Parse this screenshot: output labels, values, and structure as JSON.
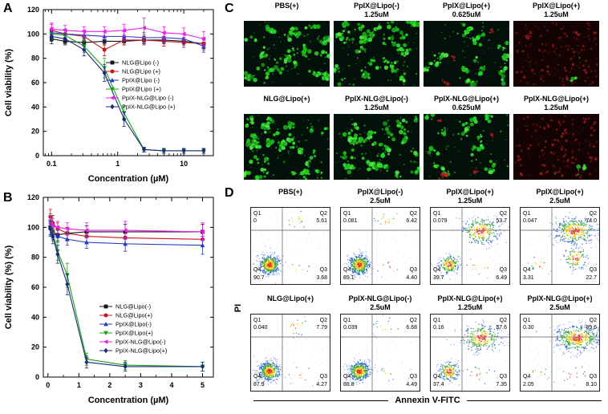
{
  "figure": {
    "panel_a_label": "A",
    "panel_b_label": "B",
    "panel_c_label": "C",
    "panel_d_label": "D"
  },
  "chart_data": [
    {
      "id": "A",
      "type": "line",
      "title": "",
      "xlabel": "Concentration (µM)",
      "ylabel": "Cell viability (%)",
      "xscale": "log",
      "xlim": [
        0.075,
        28
      ],
      "ylim": [
        0,
        120
      ],
      "xticks": [
        0.1,
        1,
        10
      ],
      "yticks": [
        0,
        20,
        40,
        60,
        80,
        100,
        120
      ],
      "grid": false,
      "legend_position": "center-right",
      "x": [
        0.1,
        0.16,
        0.31,
        0.63,
        1.25,
        2.5,
        5,
        10,
        20
      ],
      "series": [
        {
          "name": "NLG@Lipo (-)",
          "color": "#141414",
          "marker": "square",
          "values": [
            96,
            94,
            93,
            94,
            94,
            95,
            95,
            94,
            92
          ],
          "err": [
            4,
            3,
            3,
            3,
            3,
            3,
            3,
            3,
            4
          ]
        },
        {
          "name": "NLG@Lipo (+)",
          "color": "#c4161c",
          "marker": "circle",
          "values": [
            103,
            100,
            98,
            87,
            95,
            95,
            94,
            93,
            92
          ],
          "err": [
            5,
            4,
            4,
            5,
            4,
            4,
            4,
            4,
            5
          ]
        },
        {
          "name": "PpIX@Lipo (-)",
          "color": "#1f3bbf",
          "marker": "triangle-up",
          "values": [
            101,
            100,
            99,
            98,
            98,
            97,
            97,
            96,
            90
          ],
          "err": [
            4,
            4,
            4,
            4,
            4,
            4,
            4,
            4,
            5
          ]
        },
        {
          "name": "PpIX@Lipo (+)",
          "color": "#1d9e1d",
          "marker": "triangle-down",
          "values": [
            100,
            99,
            90,
            72,
            35,
            5,
            4,
            4,
            4
          ],
          "err": [
            4,
            4,
            5,
            8,
            6,
            2,
            2,
            2,
            2
          ]
        },
        {
          "name": "PpIX-NLG@Lipo (-)",
          "color": "#e91ee9",
          "marker": "triangle-left",
          "values": [
            104,
            103,
            102,
            102,
            103,
            105,
            101,
            100,
            96
          ],
          "err": [
            5,
            4,
            4,
            4,
            5,
            8,
            5,
            5,
            6
          ]
        },
        {
          "name": "PpIX-NLG@Lipo (+)",
          "color": "#1b2a78",
          "marker": "diamond",
          "values": [
            98,
            96,
            87,
            68,
            30,
            5,
            4,
            4,
            4
          ],
          "err": [
            4,
            4,
            5,
            7,
            6,
            2,
            2,
            2,
            2
          ]
        }
      ]
    },
    {
      "id": "B",
      "type": "line",
      "title": "",
      "xlabel": "Concentration (µM)",
      "ylabel": "Cell viability (%) (%)",
      "xscale": "linear",
      "xlim": [
        -0.15,
        5.35
      ],
      "ylim": [
        0,
        120
      ],
      "xticks": [
        0,
        1,
        2,
        3,
        4,
        5
      ],
      "yticks": [
        0,
        20,
        40,
        60,
        80,
        100,
        120
      ],
      "grid": false,
      "legend_position": "center-right",
      "x": [
        0.078,
        0.156,
        0.313,
        0.625,
        1.25,
        2.5,
        5
      ],
      "series": [
        {
          "name": "NLG@Lipo(-)",
          "color": "#141414",
          "marker": "square",
          "values": [
            100,
            97,
            95,
            96,
            97,
            97,
            97
          ],
          "err": [
            5,
            4,
            4,
            4,
            4,
            5,
            5
          ]
        },
        {
          "name": "NLG@Lipo(+)",
          "color": "#c4161c",
          "marker": "circle",
          "values": [
            107,
            103,
            99,
            96,
            94,
            93,
            92
          ],
          "err": [
            5,
            5,
            4,
            4,
            4,
            5,
            5
          ]
        },
        {
          "name": "PpIX@Lipo(-)",
          "color": "#1f3bbf",
          "marker": "triangle-up",
          "values": [
            100,
            96,
            94,
            92,
            90,
            89,
            88
          ],
          "err": [
            5,
            4,
            4,
            4,
            4,
            5,
            6
          ]
        },
        {
          "name": "PpIX@Lipo(+)",
          "color": "#1d9e1d",
          "marker": "triangle-down",
          "values": [
            104,
            96,
            84,
            68,
            12,
            8,
            7
          ],
          "err": [
            5,
            5,
            6,
            8,
            4,
            3,
            3
          ]
        },
        {
          "name": "PpIX-NLG@Lipo(-)",
          "color": "#e91ee9",
          "marker": "triangle-left",
          "values": [
            103,
            101,
            100,
            99,
            98,
            98,
            97
          ],
          "err": [
            5,
            5,
            4,
            4,
            5,
            6,
            6
          ]
        },
        {
          "name": "PpIX-NLG@Lipo(+)",
          "color": "#1b2a78",
          "marker": "diamond",
          "values": [
            99,
            94,
            82,
            62,
            10,
            7,
            7
          ],
          "err": [
            5,
            5,
            6,
            7,
            4,
            3,
            3
          ]
        }
      ]
    }
  ],
  "panel_c": {
    "rows": [
      {
        "cells": [
          {
            "line1": "PBS(+)",
            "line2": "",
            "green": 1.0,
            "red": 0.02
          },
          {
            "line1": "PpIX@Lipo(-)",
            "line2": "1.25uM",
            "green": 0.95,
            "red": 0.02
          },
          {
            "line1": "PpIX@Lipo(+)",
            "line2": "0.625uM",
            "green": 0.55,
            "red": 0.12
          },
          {
            "line1": "PpIX@Lipo(+)",
            "line2": "1.25uM",
            "green": 0.02,
            "red": 0.6
          }
        ]
      },
      {
        "cells": [
          {
            "line1": "NLG@Lipo(+)",
            "line2": "",
            "green": 1.0,
            "red": 0.02
          },
          {
            "line1": "PpIX-NLG@Lipo(-)",
            "line2": "1.25uM",
            "green": 0.95,
            "red": 0.02
          },
          {
            "line1": "PpIX-NLG@Lipo(+)",
            "line2": "0.625uM",
            "green": 0.5,
            "red": 0.2
          },
          {
            "line1": "PpIX-NLG@Lipo(+)",
            "line2": "1.25uM",
            "green": 0.02,
            "red": 0.55
          }
        ]
      }
    ]
  },
  "panel_d": {
    "ylabel": "PI",
    "xlabel": "Annexin V-FITC",
    "quadrant_labels": {
      "q1": "Q1",
      "q2": "Q2",
      "q3": "Q3",
      "q4": "Q4"
    },
    "rows": [
      {
        "cells": [
          {
            "line1": "PBS(+)",
            "line2": "",
            "q1": "0",
            "q2": "5.61",
            "q3": "3.68",
            "q4": "90.7"
          },
          {
            "line1": "PpIX@Lipo(-)",
            "line2": "2.5uM",
            "q1": "0.081",
            "q2": "6.42",
            "q3": "4.40",
            "q4": "89.1"
          },
          {
            "line1": "PpIX@Lipo(+)",
            "line2": "1.25uM",
            "q1": "0.079",
            "q2": "53.7",
            "q3": "6.49",
            "q4": "39.7"
          },
          {
            "line1": "PpIX@Lipo(+)",
            "line2": "2.5uM",
            "q1": "0.047",
            "q2": "74.0",
            "q3": "22.7",
            "q4": "3.31"
          }
        ]
      },
      {
        "cells": [
          {
            "line1": "NLG@Lipo(+)",
            "line2": "",
            "q1": "0.040",
            "q2": "7.79",
            "q3": "4.27",
            "q4": "87.9"
          },
          {
            "line1": "PpIX-NLG@Lipo(-)",
            "line2": "2.5uM",
            "q1": "0.039",
            "q2": "6.68",
            "q3": "4.49",
            "q4": "88.8"
          },
          {
            "line1": "PpIX-NLG@Lipo(+)",
            "line2": "1.25uM",
            "q1": "0.16",
            "q2": "57.6",
            "q3": "7.35",
            "q4": "37.4"
          },
          {
            "line1": "PpIX-NLG@Lipo(+)",
            "line2": "2.5uM",
            "q1": "0.30",
            "q2": "89.6",
            "q3": "8.10",
            "q4": "2.05"
          }
        ]
      }
    ]
  }
}
